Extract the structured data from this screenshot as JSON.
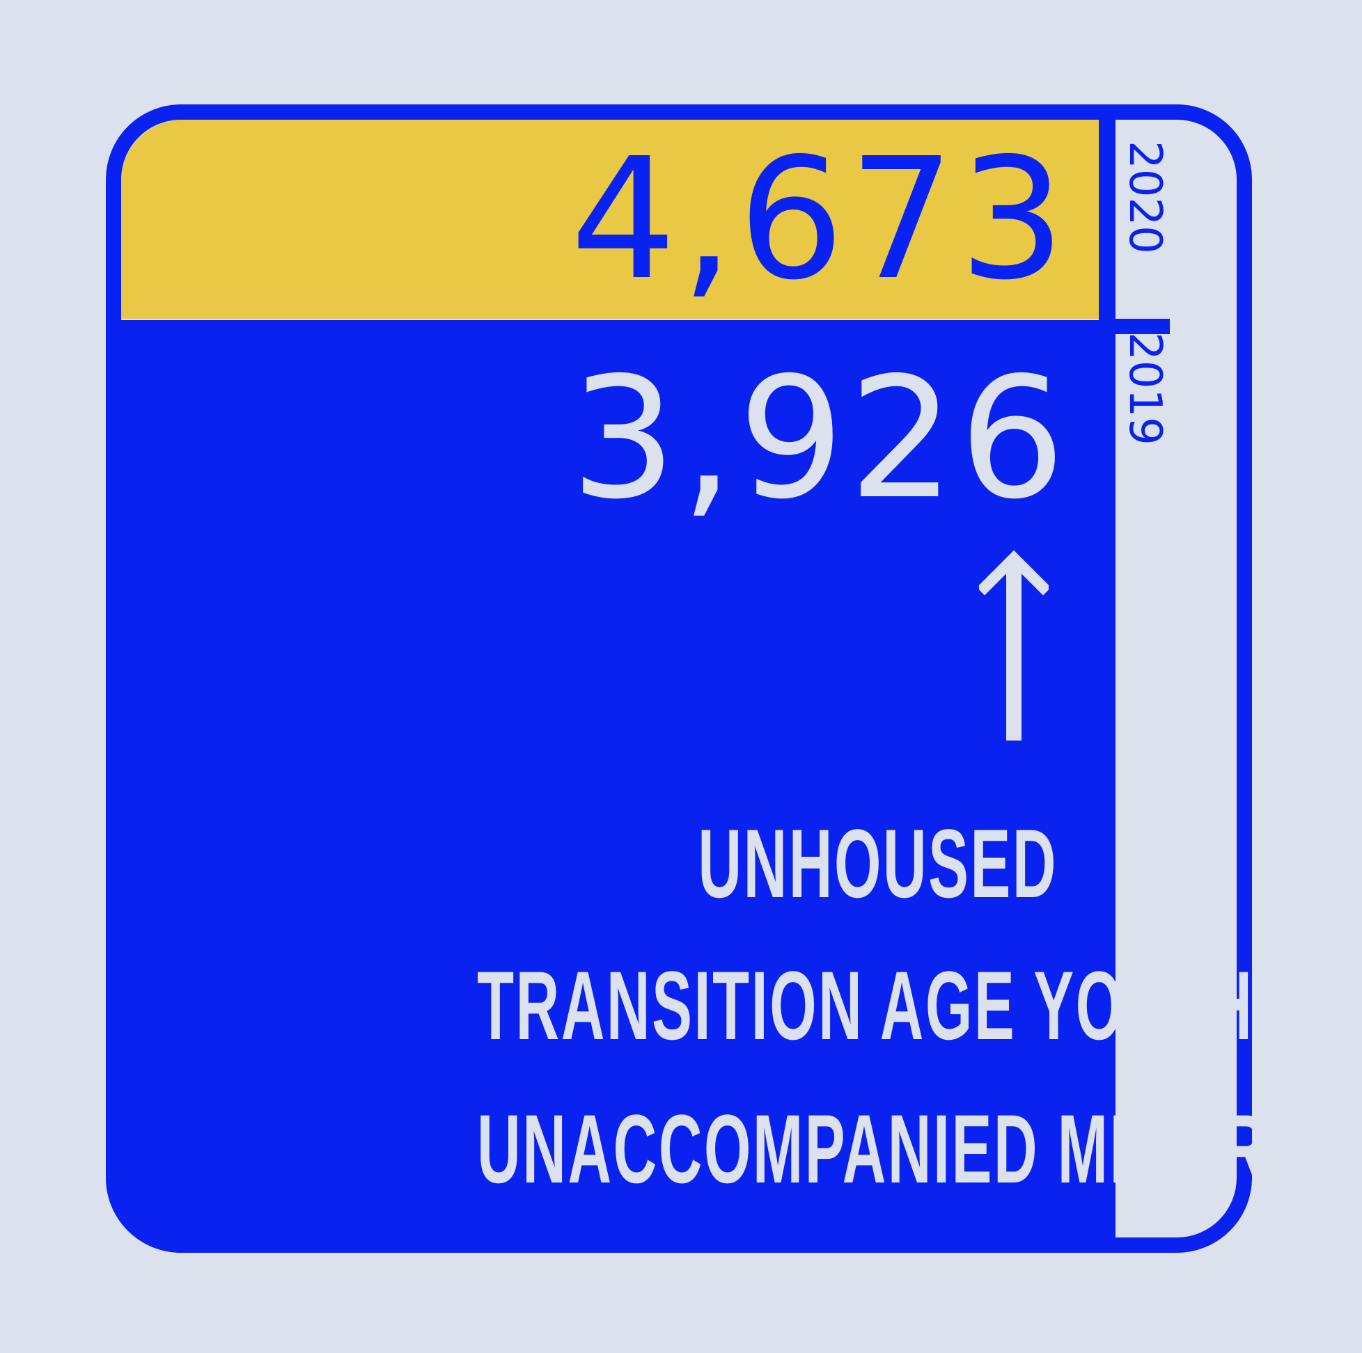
{
  "chart_data": {
    "type": "bar",
    "categories": [
      "2020",
      "2019"
    ],
    "values": [
      4673,
      3926
    ],
    "value_labels": [
      "4,673",
      "3,926"
    ],
    "label_lines": [
      "UNHOUSED",
      "TRANSITION AGE YOUTH &",
      "UNACCOMPANIED MINORS"
    ],
    "orientation": "vertical-stacked-overlay",
    "colors": {
      "2020": "#e8c845",
      "2019": "#0a22f0",
      "outline": "#0a22f0",
      "background": "#dce1ee",
      "text_light": "#dce1ee"
    },
    "annotation": "up-arrow"
  }
}
